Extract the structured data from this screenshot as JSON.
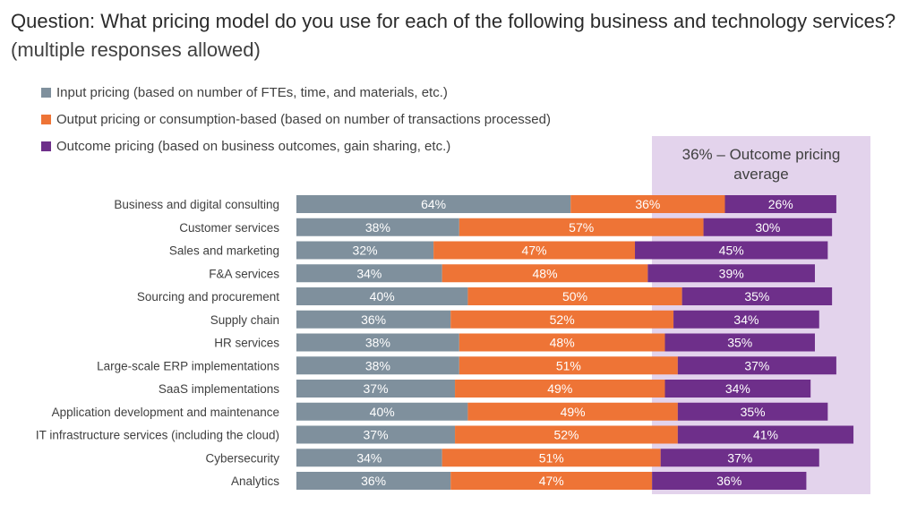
{
  "chart_data": {
    "type": "bar",
    "stacked": true,
    "orientation": "horizontal",
    "title_question": "Question: What pricing model do you use for each of the following business and technology services?",
    "title_note": "(multiple responses allowed)",
    "categories": [
      "Business and digital consulting",
      "Customer services",
      "Sales and marketing",
      "F&A services",
      "Sourcing and procurement",
      "Supply chain",
      "HR services",
      "Large-scale ERP implementations",
      "SaaS implementations",
      "Application development and maintenance",
      "IT infrastructure services (including the cloud)",
      "Cybersecurity",
      "Analytics"
    ],
    "series": [
      {
        "name": "Input pricing (based on number of FTEs, time, and materials, etc.)",
        "color": "#7f909d",
        "values": [
          64,
          38,
          32,
          34,
          40,
          36,
          38,
          38,
          37,
          40,
          37,
          34,
          36
        ]
      },
      {
        "name": "Output pricing or consumption-based (based on number of transactions processed)",
        "color": "#ee7436",
        "values": [
          36,
          57,
          47,
          48,
          50,
          52,
          48,
          51,
          49,
          49,
          52,
          51,
          47
        ]
      },
      {
        "name": "Outcome pricing (based on business outcomes, gain sharing, etc.)",
        "color": "#6e2f8a",
        "values": [
          26,
          30,
          45,
          39,
          35,
          34,
          35,
          37,
          34,
          35,
          41,
          37,
          36
        ]
      }
    ],
    "value_suffix": "%",
    "annotation": "36% – Outcome pricing average",
    "highlight_color": "#e3d3ec",
    "legend_position": "top-left",
    "grid": false
  }
}
